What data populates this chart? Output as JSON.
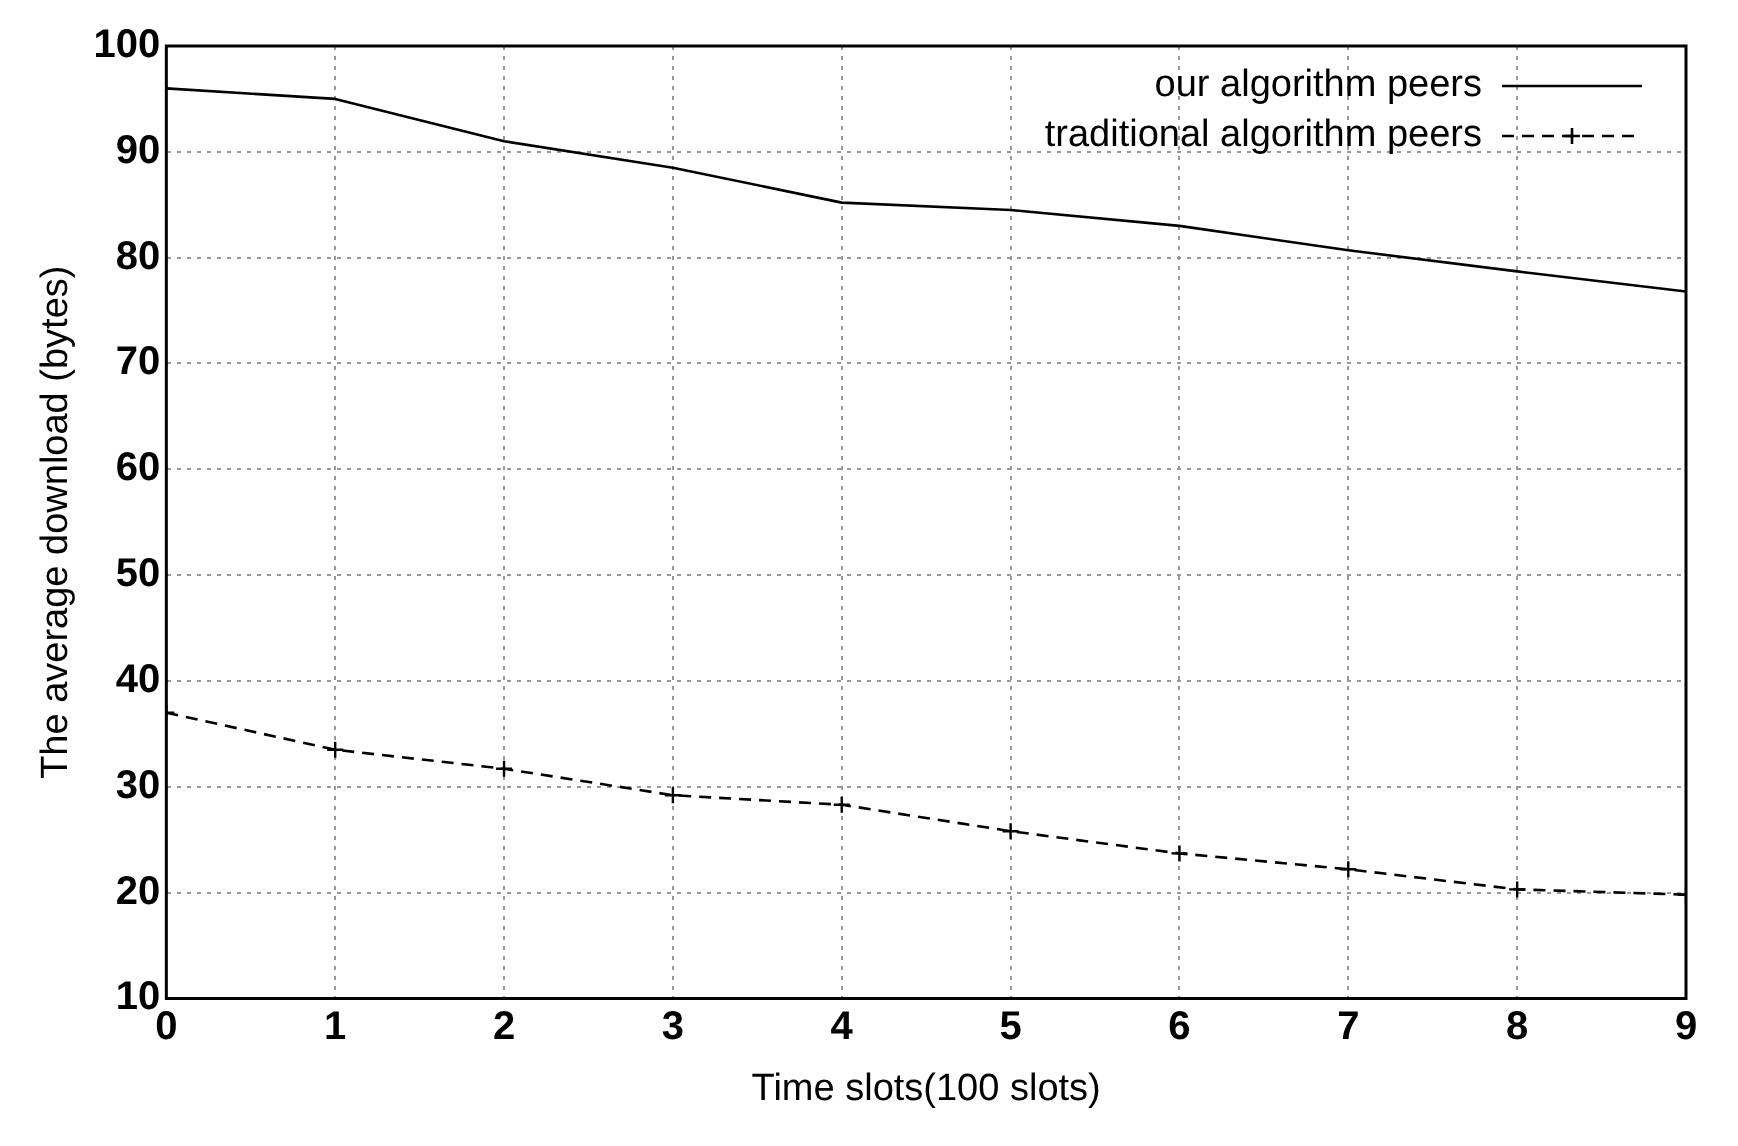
{
  "chart_data": {
    "type": "line",
    "xlabel": "Time slots(100 slots)",
    "ylabel": "The average download (bytes)",
    "x": [
      0,
      1,
      2,
      3,
      4,
      5,
      6,
      7,
      8,
      9
    ],
    "series": [
      {
        "name": "our algorithm peers",
        "color": "#000000",
        "line_style": "solid",
        "marker": "none",
        "values": [
          96,
          95,
          91,
          88.5,
          85.2,
          84.5,
          83,
          80.7,
          78.7,
          76.8
        ]
      },
      {
        "name": "traditional algorithm peers",
        "color": "#000000",
        "line_style": "dashed",
        "marker": "cross",
        "values": [
          37,
          33.5,
          31.7,
          29.2,
          28.3,
          25.8,
          23.7,
          22.2,
          20.3,
          19.8
        ]
      }
    ],
    "xlim": [
      0,
      9
    ],
    "xticks": [
      0,
      1,
      2,
      3,
      4,
      5,
      6,
      7,
      8,
      9
    ],
    "ylim": [
      10,
      100
    ],
    "yticks": [
      10,
      20,
      30,
      40,
      50,
      60,
      70,
      80,
      90,
      100
    ],
    "grid": true,
    "legend": "top right"
  }
}
